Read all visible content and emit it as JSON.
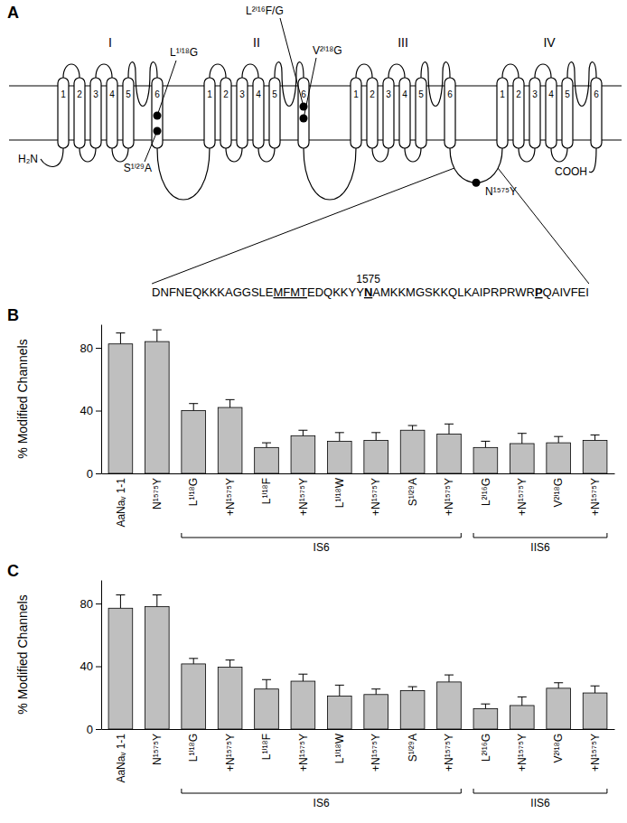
{
  "chart_data": [
    {
      "type": "bar",
      "title": "B",
      "y_label": "% Modified Channels",
      "categories": [
        "AaNaᵥ 1-1",
        "N¹⁵⁷⁵Y",
        "L¹ⁱ¹⁸G",
        "+N¹⁵⁷⁵Y",
        "L¹ⁱ¹⁸F",
        "+N¹⁵⁷⁵Y",
        "L¹ⁱ¹⁸W",
        "+N¹⁵⁷⁵Y",
        "S¹ⁱ²⁹A",
        "+N¹⁵⁷⁵Y",
        "L²ⁱ¹⁶G",
        "+N¹⁵⁷⁵Y",
        "V²ⁱ¹⁸G",
        "+N¹⁵⁷⁵Y"
      ],
      "values": [
        82.5,
        84,
        40,
        42,
        16.5,
        24,
        20.5,
        21,
        27.5,
        25,
        16.5,
        19,
        19.5,
        21
      ],
      "errors": [
        7,
        7.5,
        4.5,
        5,
        3,
        3.5,
        5.5,
        5,
        3,
        6.5,
        4,
        6.5,
        4,
        3.5
      ],
      "color": "#bfbfbf",
      "ylim": [
        0,
        95
      ],
      "yticks": [
        0,
        40,
        80
      ],
      "annotations": [
        {
          "text": "IS6",
          "from": 2,
          "to": 9
        },
        {
          "text": "IIS6",
          "from": 10,
          "to": 13
        }
      ]
    },
    {
      "type": "bar",
      "title": "C",
      "y_label": "% Modified Channels",
      "categories": [
        "AaNaᵥ 1-1",
        "N¹⁵⁷⁵Y",
        "L¹ⁱ¹⁸G",
        "+N¹⁵⁷⁵Y",
        "L¹ⁱ¹⁸F",
        "+N¹⁵⁷⁵Y",
        "L¹ⁱ¹⁸W",
        "+N¹⁵⁷⁵Y",
        "S¹ⁱ²⁹A",
        "+N¹⁵⁷⁵Y",
        "L²ⁱ¹⁶G",
        "+N¹⁵⁷⁵Y",
        "V²ⁱ¹⁸G",
        "+N¹⁵⁷⁵Y"
      ],
      "values": [
        77,
        78,
        41.5,
        39.5,
        25.5,
        30.5,
        21,
        22,
        24.5,
        30,
        13,
        15,
        26,
        23
      ],
      "errors": [
        8.5,
        7.5,
        3.5,
        4.5,
        6,
        4.5,
        7,
        3.5,
        2.5,
        4.5,
        3,
        5.5,
        3.5,
        4.5
      ],
      "color": "#bfbfbf",
      "ylim": [
        0,
        95
      ],
      "yticks": [
        0,
        40,
        80
      ],
      "annotations": [
        {
          "text": "IS6",
          "from": 2,
          "to": 9
        },
        {
          "text": "IIS6",
          "from": 10,
          "to": 13
        }
      ]
    }
  ],
  "diagram": {
    "panel_label": "A",
    "domains": [
      "I",
      "II",
      "III",
      "IV"
    ],
    "segments": [
      "1",
      "2",
      "3",
      "4",
      "5",
      "6"
    ],
    "n_terminus": "H₂N",
    "c_terminus": "COOH",
    "mutations": [
      "L¹ⁱ¹⁸G",
      "S¹ⁱ²⁹A",
      "L²ⁱ¹⁶F/G",
      "V²ⁱ¹⁸G",
      "N¹⁵⁷⁵Y"
    ],
    "residue_label": "1575",
    "sequence": [
      {
        "text": "DNFNEQKKKAGGSLE",
        "underline": false,
        "bold": false
      },
      {
        "text": "MFMT",
        "underline": true,
        "bold": false
      },
      {
        "text": "EDQKKYY",
        "underline": false,
        "bold": false
      },
      {
        "text": "N",
        "underline": true,
        "bold": true
      },
      {
        "text": "AMKKMGSKKQLKAIPRPRWR",
        "underline": false,
        "bold": false
      },
      {
        "text": "P",
        "underline": true,
        "bold": true
      },
      {
        "text": "QAIVFEI",
        "underline": false,
        "bold": false
      }
    ]
  }
}
